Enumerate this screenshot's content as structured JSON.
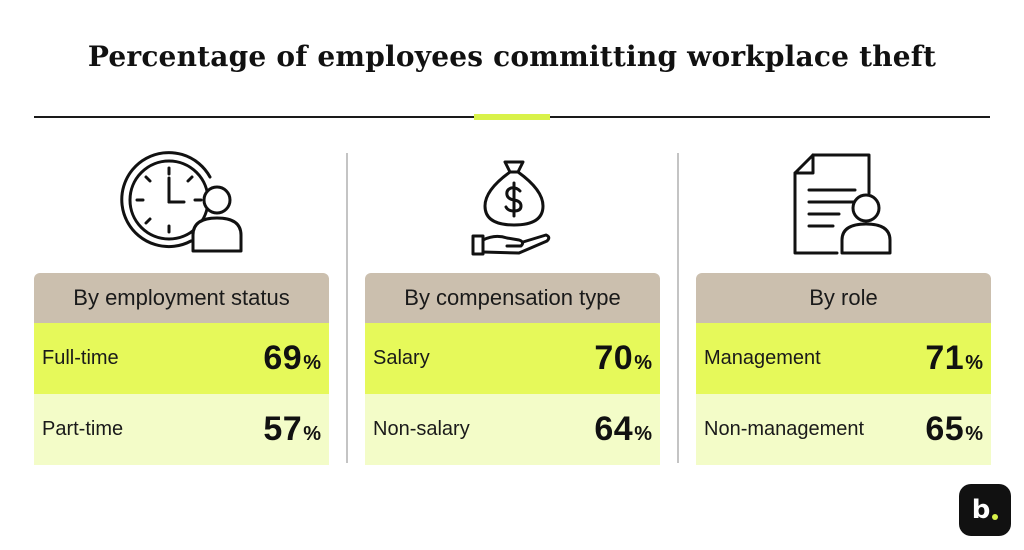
{
  "title": "Percentage of employees committing workplace theft",
  "brand": {
    "logo_text": "b",
    "accent": "#d9f24a"
  },
  "colors": {
    "header_bg": "#cbbfae",
    "row_primary_bg": "#e6f95a",
    "row_secondary_bg": "#f3fcc8"
  },
  "chart_data": {
    "type": "table",
    "unit": "%",
    "groups": [
      {
        "header": "By employment status",
        "icon": "clock-person-icon",
        "rows": [
          {
            "label": "Full-time",
            "value": 69
          },
          {
            "label": "Part-time",
            "value": 57
          }
        ]
      },
      {
        "header": "By compensation type",
        "icon": "money-bag-hand-icon",
        "rows": [
          {
            "label": "Salary",
            "value": 70
          },
          {
            "label": "Non-salary",
            "value": 64
          }
        ]
      },
      {
        "header": "By role",
        "icon": "document-person-icon",
        "rows": [
          {
            "label": "Management",
            "value": 71
          },
          {
            "label": "Non-management",
            "value": 65
          }
        ]
      }
    ]
  }
}
